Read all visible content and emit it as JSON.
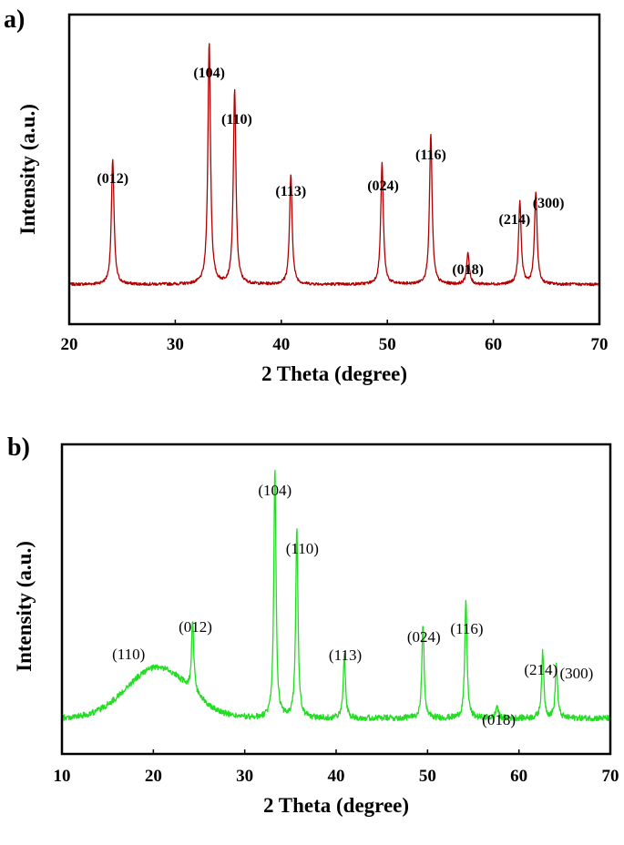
{
  "chart_data": [
    {
      "type": "line",
      "panel_label": "a)",
      "xlabel": "2 Theta (degree)",
      "ylabel": "Intensity (a.u.)",
      "xlim": [
        20,
        70
      ],
      "xticks": [
        20,
        30,
        40,
        50,
        60,
        70
      ],
      "line_color": "#b00000",
      "baseline": 0.1,
      "noise": 0.006,
      "series": [
        {
          "peaks": [
            {
              "x": 24.1,
              "height": 0.52,
              "width": 0.22
            },
            {
              "x": 33.2,
              "height": 1.0,
              "width": 0.22
            },
            {
              "x": 35.6,
              "height": 0.8,
              "width": 0.22
            },
            {
              "x": 40.9,
              "height": 0.45,
              "width": 0.22
            },
            {
              "x": 49.5,
              "height": 0.5,
              "width": 0.22
            },
            {
              "x": 54.1,
              "height": 0.62,
              "width": 0.22
            },
            {
              "x": 57.6,
              "height": 0.13,
              "width": 0.22
            },
            {
              "x": 62.5,
              "height": 0.34,
              "width": 0.22
            },
            {
              "x": 64.0,
              "height": 0.38,
              "width": 0.22
            }
          ]
        }
      ],
      "annotations": [
        {
          "text": "(012)",
          "x": 24.1
        },
        {
          "text": "(104)",
          "x": 33.2
        },
        {
          "text": "(110)",
          "x": 35.8
        },
        {
          "text": "(113)",
          "x": 40.9
        },
        {
          "text": "(024)",
          "x": 49.6
        },
        {
          "text": "(116)",
          "x": 54.1
        },
        {
          "text": "(018)",
          "x": 57.6
        },
        {
          "text": "(214)",
          "x": 62.0
        },
        {
          "text": "(300)",
          "x": 65.2
        }
      ]
    },
    {
      "type": "line",
      "panel_label": "b)",
      "xlabel": "2 Theta (degree)",
      "ylabel": "Intensity (a.u.)",
      "xlim": [
        10,
        70
      ],
      "xticks": [
        10,
        20,
        30,
        40,
        50,
        60,
        70
      ],
      "line_color": "#22dd22",
      "baseline": 0.08,
      "noise": 0.012,
      "hump": {
        "x": 20.5,
        "height": 0.2,
        "width": 3.4
      },
      "series": [
        {
          "peaks": [
            {
              "x": 24.3,
              "height": 0.28,
              "width": 0.22
            },
            {
              "x": 33.3,
              "height": 0.98,
              "width": 0.22
            },
            {
              "x": 35.7,
              "height": 0.75,
              "width": 0.22
            },
            {
              "x": 40.9,
              "height": 0.25,
              "width": 0.22
            },
            {
              "x": 49.5,
              "height": 0.37,
              "width": 0.22
            },
            {
              "x": 54.2,
              "height": 0.47,
              "width": 0.22
            },
            {
              "x": 57.6,
              "height": 0.05,
              "width": 0.22
            },
            {
              "x": 62.6,
              "height": 0.26,
              "width": 0.22
            },
            {
              "x": 64.1,
              "height": 0.21,
              "width": 0.22
            }
          ]
        }
      ],
      "annotations": [
        {
          "text": "(110)",
          "x": 17.3,
          "color": "#8b0000"
        },
        {
          "text": "(012)",
          "x": 24.6
        },
        {
          "text": "(104)",
          "x": 33.3
        },
        {
          "text": "(110)",
          "x": 36.3
        },
        {
          "text": "(113)",
          "x": 41.0
        },
        {
          "text": "(024)",
          "x": 49.6
        },
        {
          "text": "(116)",
          "x": 54.3
        },
        {
          "text": "(018)",
          "x": 57.8
        },
        {
          "text": "(214)",
          "x": 62.4
        },
        {
          "text": "(300)",
          "x": 66.3
        }
      ]
    }
  ]
}
